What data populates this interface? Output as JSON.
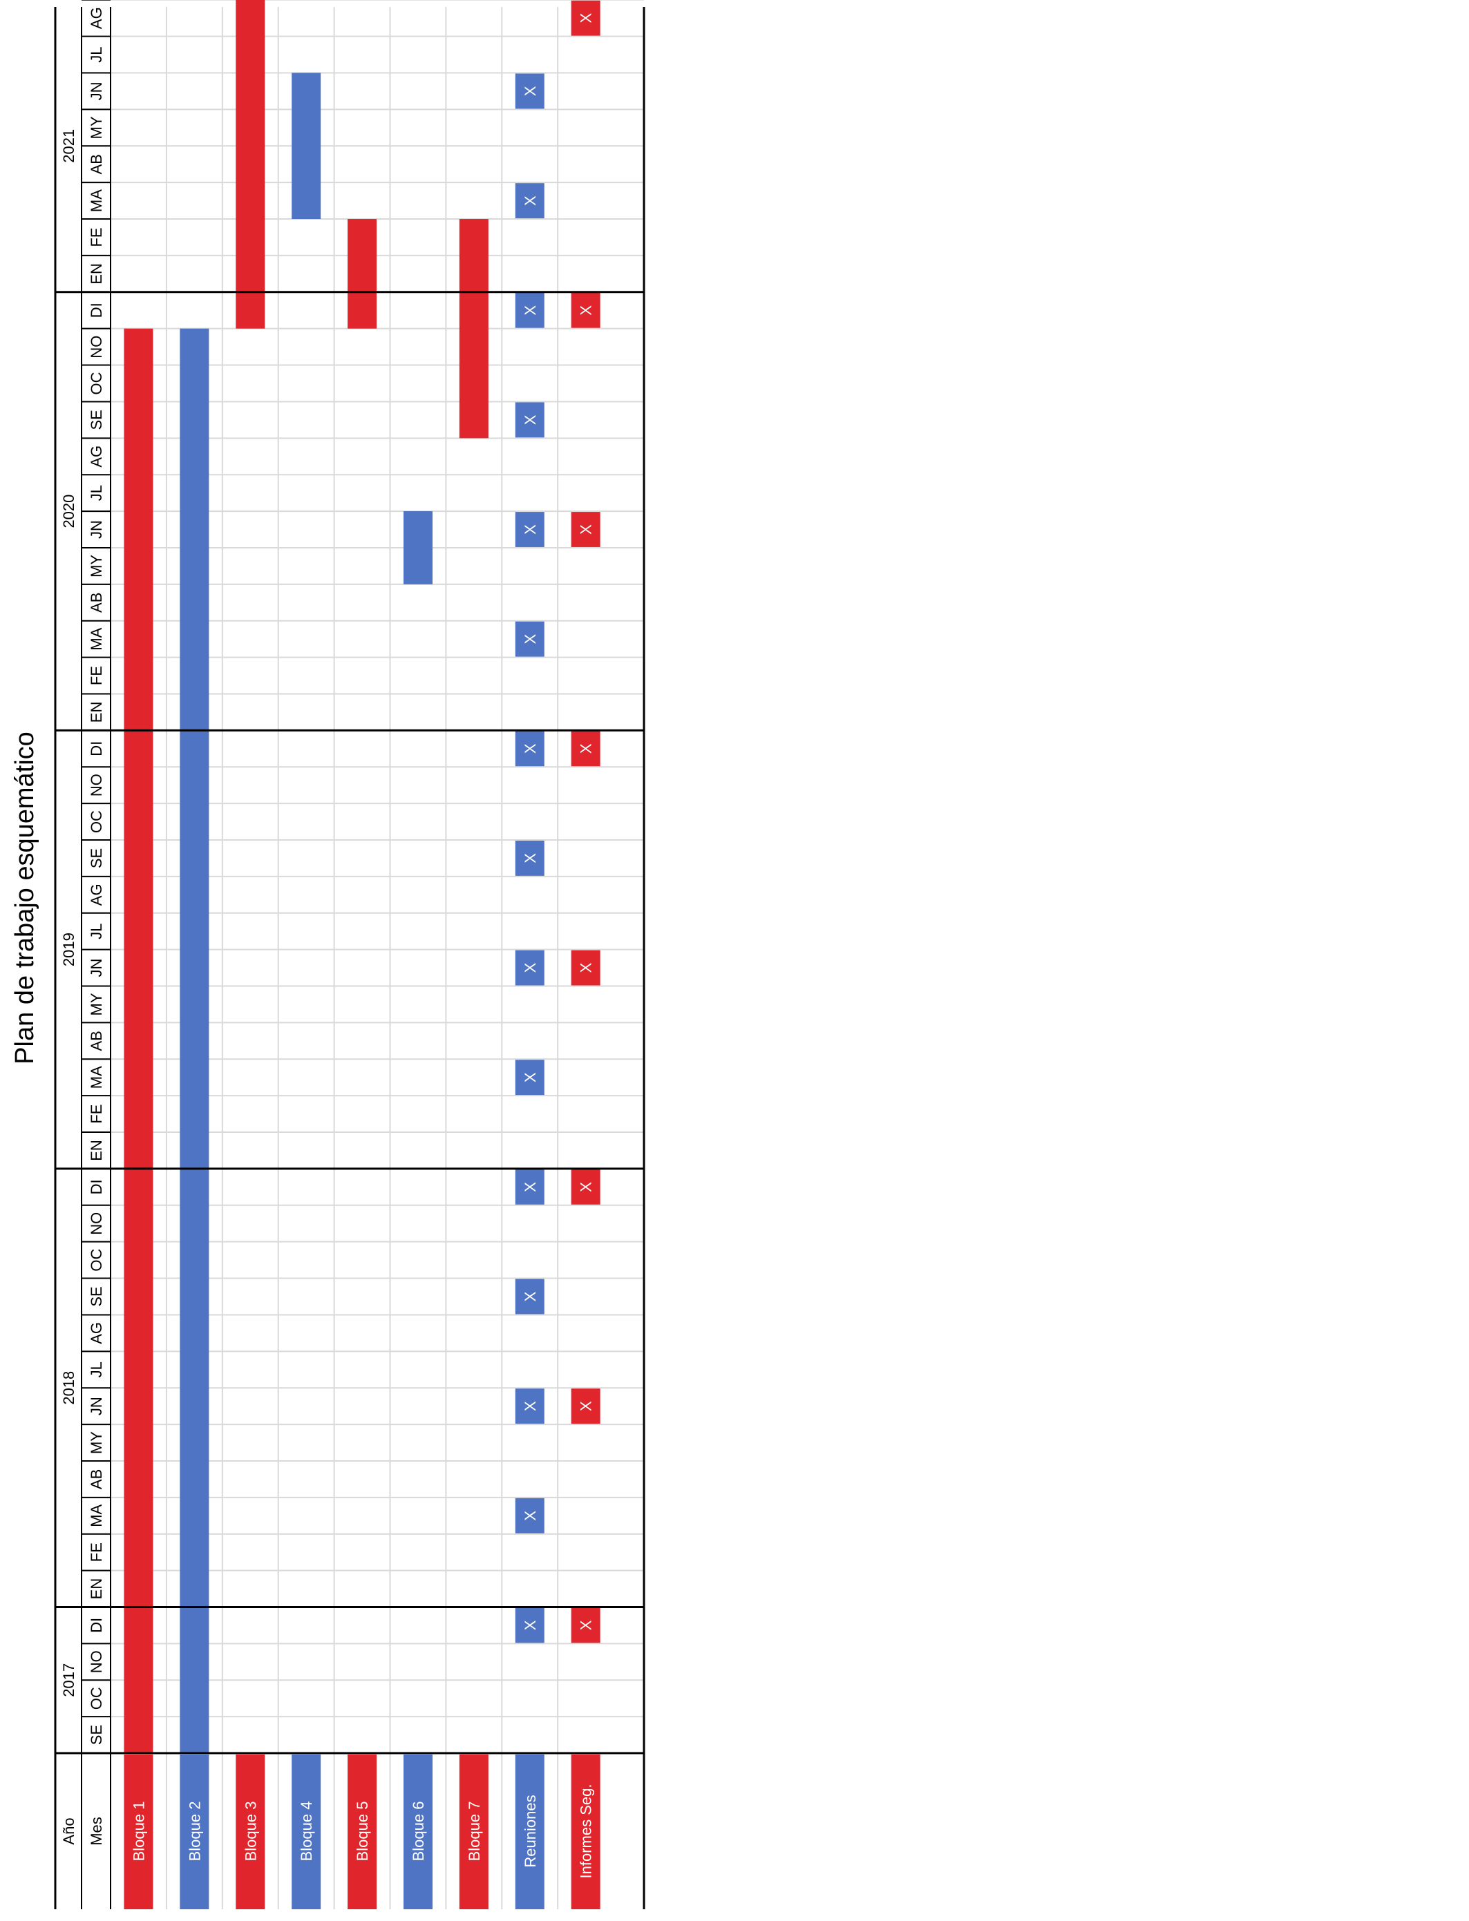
{
  "title": "Plan de trabajo esquemático",
  "header": {
    "year_label": "Año",
    "month_label": "Mes"
  },
  "colors": {
    "red": "#e0262c",
    "blue": "#4f74c4",
    "grid": "#d9d9d9",
    "border": "#000000"
  },
  "chart_data": {
    "type": "gantt",
    "orientation": "rotated-90",
    "timeline_start": "2017-09",
    "timeline_end": "2021-08",
    "years": [
      {
        "label": "2017",
        "months": [
          "SE",
          "OC",
          "NO",
          "DI"
        ]
      },
      {
        "label": "2018",
        "months": [
          "EN",
          "FE",
          "MA",
          "AB",
          "MY",
          "JN",
          "JL",
          "AG",
          "SE",
          "OC",
          "NO",
          "DI"
        ]
      },
      {
        "label": "2019",
        "months": [
          "EN",
          "FE",
          "MA",
          "AB",
          "MY",
          "JN",
          "JL",
          "AG",
          "SE",
          "OC",
          "NO",
          "DI"
        ]
      },
      {
        "label": "2020",
        "months": [
          "EN",
          "FE",
          "MA",
          "AB",
          "MY",
          "JN",
          "JL",
          "AG",
          "SE",
          "OC",
          "NO",
          "DI"
        ]
      },
      {
        "label": "2021",
        "months": [
          "EN",
          "FE",
          "MA",
          "AB",
          "MY",
          "JN",
          "JL",
          "AG"
        ]
      }
    ],
    "tasks": [
      {
        "name": "Bloque 1",
        "color": "red",
        "bars": [
          {
            "start": "2017-09",
            "end": "2020-11"
          }
        ]
      },
      {
        "name": "Bloque 2",
        "color": "blue",
        "bars": [
          {
            "start": "2017-09",
            "end": "2020-11"
          }
        ]
      },
      {
        "name": "Bloque 3",
        "color": "red",
        "bars": [
          {
            "start": "2020-12",
            "end": "2021-08"
          }
        ]
      },
      {
        "name": "Bloque 4",
        "color": "blue",
        "bars": [
          {
            "start": "2021-03",
            "end": "2021-06"
          }
        ]
      },
      {
        "name": "Bloque 5",
        "color": "red",
        "bars": [
          {
            "start": "2020-12",
            "end": "2021-02"
          }
        ]
      },
      {
        "name": "Bloque 6",
        "color": "blue",
        "bars": [
          {
            "start": "2020-05",
            "end": "2020-06"
          }
        ]
      },
      {
        "name": "Bloque 7",
        "color": "red",
        "bars": [
          {
            "start": "2020-09",
            "end": "2021-02"
          }
        ]
      },
      {
        "name": "Reuniones",
        "color": "blue",
        "mark": "X",
        "marks": [
          "2017-12",
          "2018-03",
          "2018-06",
          "2018-09",
          "2018-12",
          "2019-03",
          "2019-06",
          "2019-09",
          "2019-12",
          "2020-03",
          "2020-06",
          "2020-09",
          "2020-12",
          "2021-03",
          "2021-06"
        ]
      },
      {
        "name": "Informes Seg.",
        "color": "red",
        "mark": "X",
        "marks": [
          "2017-12",
          "2018-06",
          "2018-12",
          "2019-06",
          "2019-12",
          "2020-06",
          "2020-12",
          "2021-08"
        ]
      }
    ]
  }
}
